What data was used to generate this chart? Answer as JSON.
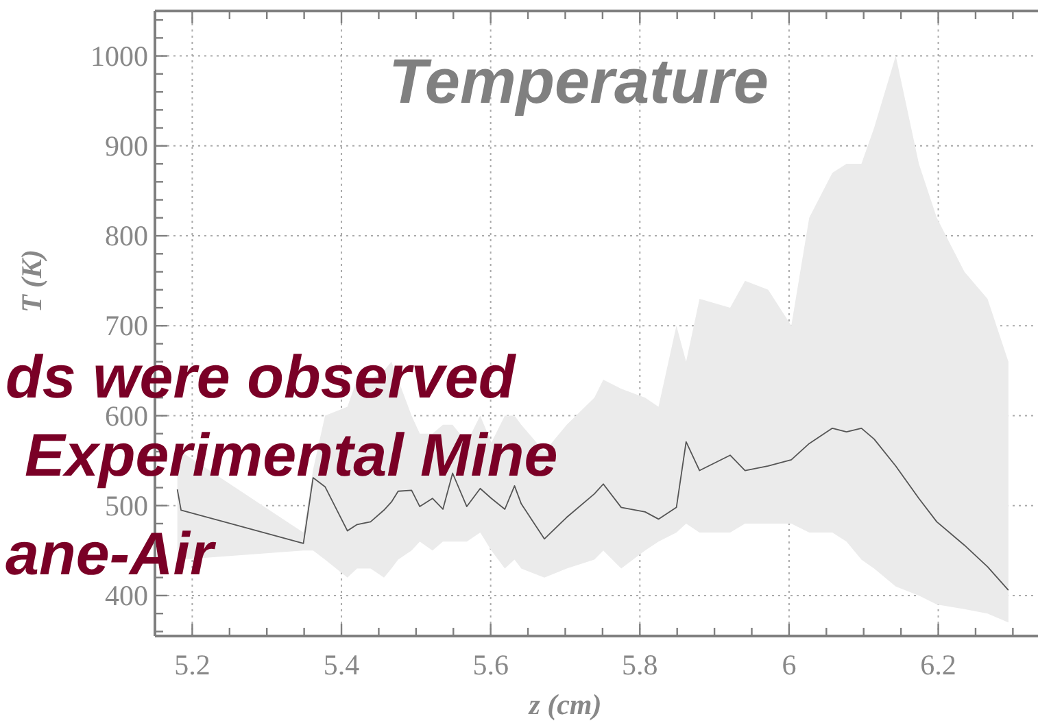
{
  "chart_data": {
    "type": "line",
    "title": "Temperature",
    "xlabel": "z (cm)",
    "ylabel": "T (K)",
    "annotations": [
      "ds were observed",
      "Experimental Mine",
      "ane-Air"
    ],
    "xlim": [
      5.15,
      6.33
    ],
    "ylim": [
      355,
      1050
    ],
    "xticks": [
      {
        "value": 5.15,
        "label": null
      },
      5.2,
      {
        "value": 5.25,
        "label": null
      },
      {
        "value": 5.3,
        "label": null
      },
      {
        "value": 5.35,
        "label": null
      },
      5.4,
      {
        "value": 5.45,
        "label": null
      },
      {
        "value": 5.5,
        "label": null
      },
      {
        "value": 5.55,
        "label": null
      },
      5.6,
      {
        "value": 5.65,
        "label": null
      },
      {
        "value": 5.7,
        "label": null
      },
      {
        "value": 5.75,
        "label": null
      },
      5.8,
      {
        "value": 5.85,
        "label": null
      },
      {
        "value": 5.9,
        "label": null
      },
      {
        "value": 5.95,
        "label": null
      },
      6,
      {
        "value": 6.05,
        "label": null
      },
      {
        "value": 6.1,
        "label": null
      },
      {
        "value": 6.15,
        "label": null
      },
      6.2,
      {
        "value": 6.25,
        "label": null
      },
      {
        "value": 6.3,
        "label": null
      }
    ],
    "yticks": [
      {
        "value": 360,
        "label": null
      },
      {
        "value": 380,
        "label": null
      },
      400,
      {
        "value": 420,
        "label": null
      },
      {
        "value": 440,
        "label": null
      },
      {
        "value": 460,
        "label": null
      },
      {
        "value": 480,
        "label": null
      },
      500,
      {
        "value": 520,
        "label": null
      },
      {
        "value": 540,
        "label": null
      },
      {
        "value": 560,
        "label": null
      },
      {
        "value": 580,
        "label": null
      },
      600,
      {
        "value": 620,
        "label": null
      },
      {
        "value": 640,
        "label": null
      },
      {
        "value": 660,
        "label": null
      },
      {
        "value": 680,
        "label": null
      },
      700,
      {
        "value": 720,
        "label": null
      },
      {
        "value": 740,
        "label": null
      },
      {
        "value": 760,
        "label": null
      },
      {
        "value": 780,
        "label": null
      },
      800,
      {
        "value": 820,
        "label": null
      },
      {
        "value": 840,
        "label": null
      },
      {
        "value": 860,
        "label": null
      },
      {
        "value": 880,
        "label": null
      },
      900,
      {
        "value": 920,
        "label": null
      },
      {
        "value": 940,
        "label": null
      },
      {
        "value": 960,
        "label": null
      },
      {
        "value": 980,
        "label": null
      },
      1000,
      {
        "value": 1020,
        "label": null
      },
      {
        "value": 1040,
        "label": null
      }
    ],
    "grid": true,
    "line_style": "solid",
    "series": [
      {
        "color": "#555555",
        "x": [
          5.18,
          5.185,
          5.349,
          5.362,
          5.378,
          5.408,
          5.421,
          5.439,
          5.457,
          5.467,
          5.476,
          5.494,
          5.505,
          5.522,
          5.536,
          5.549,
          5.568,
          5.586,
          5.601,
          5.619,
          5.632,
          5.641,
          5.672,
          5.702,
          5.739,
          5.751,
          5.775,
          5.807,
          5.825,
          5.849,
          5.862,
          5.88,
          5.921,
          5.941,
          5.972,
          6.003,
          6.027,
          6.058,
          6.077,
          6.097,
          6.114,
          6.143,
          6.174,
          6.198,
          6.235,
          6.266,
          6.294
        ],
        "values": [
          518,
          495,
          458,
          531,
          521,
          472,
          479,
          482,
          495,
          504,
          516,
          517,
          499,
          508,
          496,
          536,
          499,
          519,
          508,
          496,
          522,
          502,
          463,
          487,
          513,
          524,
          498,
          493,
          485,
          498,
          571,
          539,
          556,
          539,
          544,
          551,
          569,
          586,
          582,
          586,
          574,
          544,
          508,
          482,
          456,
          432,
          406
        ],
        "lower": [
          450,
          440,
          450,
          450,
          440,
          420,
          430,
          430,
          420,
          430,
          440,
          450,
          460,
          450,
          460,
          460,
          460,
          470,
          450,
          430,
          440,
          430,
          420,
          430,
          440,
          450,
          430,
          450,
          460,
          470,
          480,
          470,
          470,
          480,
          480,
          480,
          470,
          470,
          460,
          440,
          430,
          410,
          400,
          390,
          385,
          380,
          370
        ],
        "upper": [
          570,
          560,
          470,
          540,
          600,
          610,
          640,
          640,
          650,
          660,
          640,
          600,
          580,
          580,
          590,
          590,
          570,
          600,
          570,
          600,
          600,
          590,
          560,
          590,
          620,
          640,
          630,
          620,
          610,
          700,
          660,
          730,
          720,
          750,
          740,
          700,
          820,
          870,
          880,
          880,
          920,
          1000,
          880,
          820,
          760,
          730,
          660
        ]
      }
    ]
  }
}
